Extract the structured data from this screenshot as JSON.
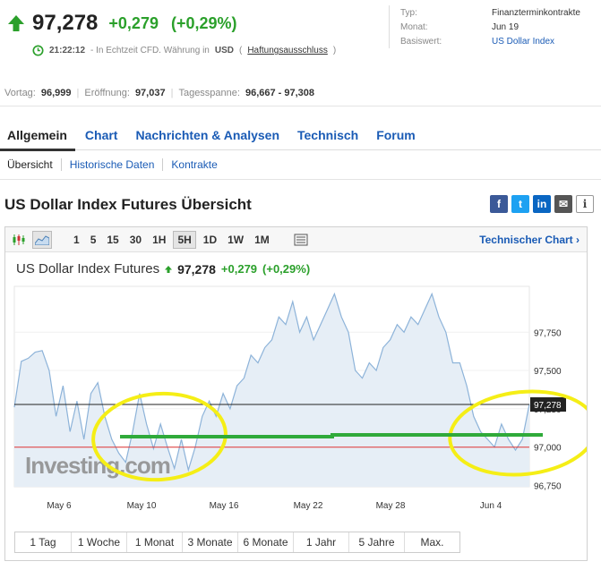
{
  "quote": {
    "last": "97,278",
    "change": "+0,279",
    "change_pct": "(+0,29%)",
    "time": "21:22:12",
    "realtime_text": "- In Echtzeit CFD. Währung in",
    "currency": "USD",
    "disclaimer": "Haftungsausschluss"
  },
  "meta": [
    {
      "key": "Typ:",
      "value": "Finanzterminkontrakte"
    },
    {
      "key": "Monat:",
      "value": "Jun 19"
    },
    {
      "key": "Basiswert:",
      "value": "US Dollar Index"
    }
  ],
  "stats": {
    "prev_label": "Vortag:",
    "prev_value": "96,999",
    "open_label": "Eröffnung:",
    "open_value": "97,037",
    "range_label": "Tagesspanne:",
    "range_value": "96,667 - 97,308"
  },
  "tabs": [
    "Allgemein",
    "Chart",
    "Nachrichten & Analysen",
    "Technisch",
    "Forum"
  ],
  "subtabs": [
    "Übersicht",
    "Historische Daten",
    "Kontrakte"
  ],
  "section_title": "US Dollar Index Futures Übersicht",
  "social": {
    "facebook": "f",
    "twitter": "t",
    "linkedin": "in",
    "mail": "✉",
    "info": "i"
  },
  "toolbar": {
    "periods": [
      "1",
      "5",
      "15",
      "30",
      "1H",
      "5H",
      "1D",
      "1W",
      "1M"
    ],
    "selected_period": "5H",
    "technical_chart": "Technischer Chart ›"
  },
  "chart_header": {
    "name": "US Dollar Index Futures",
    "price": "97,278",
    "change": "+0,279",
    "change_pct": "(+0,29%)"
  },
  "watermark": "Investing.com",
  "range_buttons": [
    "1 Tag",
    "1 Woche",
    "1 Monat",
    "3 Monate",
    "6 Monate",
    "1 Jahr",
    "5 Jahre",
    "Max."
  ],
  "colors": {
    "up": "#2ba02b",
    "link": "#1a5bb5",
    "line": "#8db3d9",
    "fill": "#e6eef6",
    "annotation_yellow": "#f5ee16",
    "annotation_green": "#2faa3a"
  },
  "chart_data": {
    "type": "area",
    "title": "US Dollar Index Futures",
    "x_ticks": [
      "May 6",
      "May 10",
      "May 16",
      "May 22",
      "May 28",
      "Jun 4"
    ],
    "y_ticks": [
      "97,750",
      "97,500",
      "97,250",
      "97,000",
      "96,750"
    ],
    "ylim": [
      96.74,
      98.05
    ],
    "current_price_label": "97,278",
    "current_price": 97.278,
    "prev_close": 96.999,
    "values": [
      97.26,
      97.56,
      97.58,
      97.62,
      97.63,
      97.5,
      97.2,
      97.4,
      97.1,
      97.3,
      97.05,
      97.35,
      97.42,
      97.2,
      97.05,
      96.96,
      96.9,
      97.1,
      97.35,
      97.15,
      96.99,
      97.15,
      97.0,
      96.86,
      97.05,
      96.85,
      97.0,
      97.2,
      97.3,
      97.2,
      97.35,
      97.25,
      97.4,
      97.45,
      97.6,
      97.55,
      97.65,
      97.7,
      97.85,
      97.8,
      97.95,
      97.75,
      97.85,
      97.7,
      97.8,
      97.9,
      98.0,
      97.85,
      97.75,
      97.5,
      97.45,
      97.55,
      97.5,
      97.65,
      97.7,
      97.8,
      97.75,
      97.85,
      97.8,
      97.9,
      98.0,
      97.85,
      97.75,
      97.55,
      97.55,
      97.4,
      97.2,
      97.1,
      97.05,
      97.0,
      97.15,
      97.05,
      96.98,
      97.05,
      97.28
    ]
  }
}
